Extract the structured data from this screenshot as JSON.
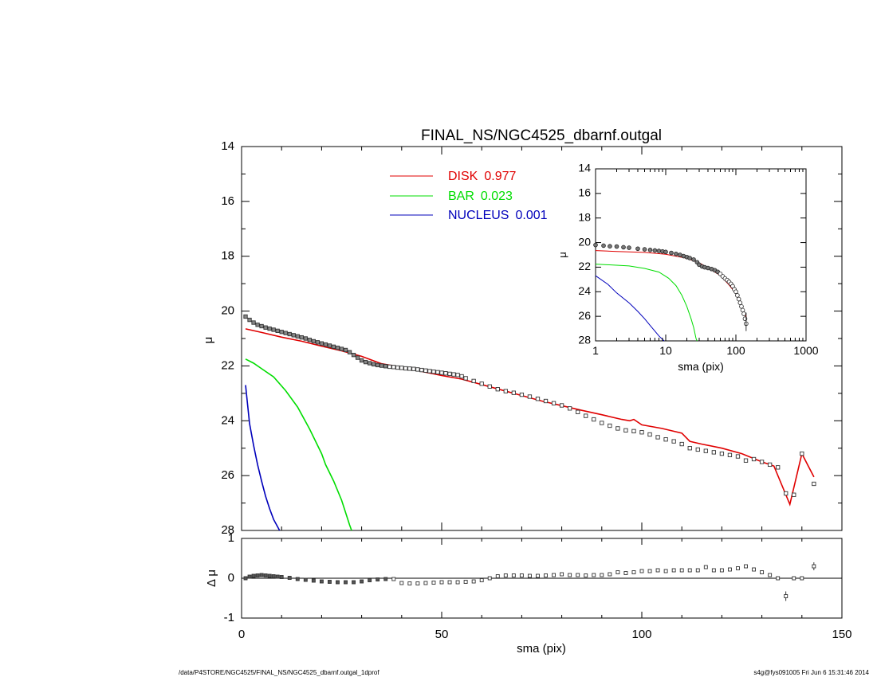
{
  "footer": {
    "left": "/data/P4STORE/NGC4525/FINAL_NS/NGC4525_dbarnf.outgal_1dprof",
    "right": "s4g@fys091005  Fri Jun  6 15:31:46 2014"
  },
  "colors": {
    "disk": "#e00000",
    "bar": "#00dd00",
    "nucleus": "#0000bb",
    "data": "#000000"
  },
  "chart_data": [
    {
      "type": "line",
      "title": "FINAL_NS/NGC4525_dbarnf.outgal",
      "xlabel": "",
      "ylabel": "μ",
      "xlim": [
        0,
        150
      ],
      "ylim": [
        28,
        14
      ],
      "x_ticks": [
        0,
        50,
        100,
        150
      ],
      "y_ticks": [
        14,
        16,
        18,
        20,
        22,
        24,
        26,
        28
      ],
      "legend_position": "top-left",
      "legend": [
        {
          "name": "DISK",
          "value": "0.977",
          "color": "#e00000"
        },
        {
          "name": "BAR",
          "value": "0.023",
          "color": "#00dd00"
        },
        {
          "name": "NUCLEUS",
          "value": "0.001",
          "color": "#0000bb"
        }
      ],
      "series": [
        {
          "name": "DISK",
          "color": "#e00000",
          "x": [
            1,
            5,
            10,
            15,
            20,
            25,
            30,
            35,
            40,
            45,
            50,
            55,
            60,
            65,
            70,
            75,
            80,
            85,
            90,
            95,
            97,
            98,
            100,
            105,
            110,
            112,
            115,
            120,
            125,
            130,
            133,
            137,
            140,
            143
          ],
          "y": [
            20.65,
            20.78,
            20.95,
            21.1,
            21.28,
            21.45,
            21.65,
            21.92,
            22.05,
            22.2,
            22.35,
            22.48,
            22.68,
            22.88,
            23.08,
            23.28,
            23.45,
            23.62,
            23.78,
            23.95,
            24.0,
            23.95,
            24.15,
            24.28,
            24.45,
            24.75,
            24.85,
            25.0,
            25.2,
            25.5,
            25.65,
            27.05,
            25.2,
            26.05
          ]
        },
        {
          "name": "BAR",
          "color": "#00dd00",
          "x": [
            1,
            3,
            5,
            8,
            11,
            14,
            17,
            20,
            21,
            23,
            25,
            27,
            27.5
          ],
          "y": [
            21.75,
            21.9,
            22.1,
            22.4,
            22.9,
            23.5,
            24.3,
            25.2,
            25.6,
            26.2,
            26.9,
            27.8,
            28.0
          ]
        },
        {
          "name": "NUCLEUS",
          "color": "#0000bb",
          "x": [
            1,
            2,
            3,
            4,
            5,
            6,
            7,
            8,
            9.5
          ],
          "y": [
            22.7,
            24.1,
            24.9,
            25.6,
            26.2,
            26.75,
            27.2,
            27.6,
            28.0
          ]
        },
        {
          "name": "",
          "color": "#000000",
          "x": [
            1,
            2,
            3,
            4,
            5,
            6,
            7,
            8,
            9,
            10,
            11,
            12,
            13,
            14,
            15,
            16,
            17,
            18,
            19,
            20,
            21,
            22,
            23,
            24,
            25,
            26,
            27,
            28,
            29,
            30,
            31,
            32,
            33,
            34,
            35,
            36,
            37,
            38,
            39,
            40,
            41,
            42,
            43,
            44,
            45,
            46,
            47,
            48,
            49,
            50,
            51,
            52,
            53,
            54,
            55,
            56,
            58,
            60,
            62,
            64,
            66,
            68,
            70,
            72,
            74,
            76,
            78,
            80,
            82,
            84,
            86,
            88,
            90,
            92,
            94,
            96,
            98,
            100,
            102,
            104,
            106,
            108,
            110,
            112,
            114,
            116,
            118,
            120,
            122,
            124,
            126,
            128,
            130,
            132,
            134,
            136,
            138,
            140,
            143
          ],
          "y": [
            20.2,
            20.32,
            20.42,
            20.5,
            20.55,
            20.6,
            20.64,
            20.68,
            20.72,
            20.76,
            20.8,
            20.84,
            20.88,
            20.92,
            20.96,
            21.0,
            21.05,
            21.1,
            21.14,
            21.18,
            21.22,
            21.26,
            21.3,
            21.34,
            21.38,
            21.42,
            21.5,
            21.6,
            21.7,
            21.8,
            21.86,
            21.9,
            21.94,
            21.97,
            21.99,
            22.01,
            22.03,
            22.04,
            22.06,
            22.07,
            22.09,
            22.1,
            22.11,
            22.13,
            22.15,
            22.17,
            22.19,
            22.21,
            22.23,
            22.25,
            22.27,
            22.29,
            22.31,
            22.33,
            22.38,
            22.45,
            22.55,
            22.65,
            22.75,
            22.85,
            22.92,
            22.98,
            23.05,
            23.12,
            23.2,
            23.28,
            23.36,
            23.44,
            23.55,
            23.68,
            23.82,
            23.95,
            24.08,
            24.18,
            24.28,
            24.35,
            24.38,
            24.42,
            24.5,
            24.6,
            24.68,
            24.75,
            24.85,
            25.0,
            25.05,
            25.1,
            25.15,
            25.2,
            25.25,
            25.3,
            25.45,
            25.4,
            25.5,
            25.6,
            25.7,
            26.65,
            26.7,
            25.2,
            26.3
          ]
        }
      ]
    },
    {
      "type": "scatter",
      "title": "",
      "xlabel": "sma (pix)",
      "ylabel": "Δ μ",
      "xlim": [
        0,
        150
      ],
      "ylim": [
        -1.0,
        1.0
      ],
      "x_ticks": [
        0,
        50,
        100,
        150
      ],
      "y_ticks": [
        -1,
        0,
        1
      ],
      "reference_line": 0,
      "series": [
        {
          "name": "",
          "x": [
            1,
            2,
            3,
            4,
            5,
            6,
            7,
            8,
            9,
            10,
            12,
            14,
            16,
            18,
            20,
            22,
            24,
            26,
            28,
            30,
            32,
            34,
            36,
            38,
            40,
            42,
            44,
            46,
            48,
            50,
            52,
            54,
            56,
            58,
            60,
            62,
            64,
            66,
            68,
            70,
            72,
            74,
            76,
            78,
            80,
            82,
            84,
            86,
            88,
            90,
            92,
            94,
            96,
            98,
            100,
            102,
            104,
            106,
            108,
            110,
            112,
            114,
            116,
            118,
            120,
            122,
            124,
            126,
            128,
            130,
            132,
            134,
            136,
            138,
            140,
            143
          ],
          "y": [
            0.0,
            0.04,
            0.06,
            0.07,
            0.08,
            0.07,
            0.06,
            0.05,
            0.04,
            0.03,
            0.01,
            -0.02,
            -0.04,
            -0.06,
            -0.08,
            -0.09,
            -0.1,
            -0.1,
            -0.1,
            -0.08,
            -0.05,
            -0.03,
            -0.02,
            -0.02,
            -0.12,
            -0.13,
            -0.13,
            -0.12,
            -0.11,
            -0.1,
            -0.1,
            -0.1,
            -0.09,
            -0.08,
            -0.05,
            0.0,
            0.05,
            0.07,
            0.07,
            0.07,
            0.06,
            0.06,
            0.07,
            0.08,
            0.1,
            0.08,
            0.08,
            0.07,
            0.08,
            0.08,
            0.1,
            0.15,
            0.13,
            0.15,
            0.18,
            0.18,
            0.2,
            0.18,
            0.2,
            0.2,
            0.2,
            0.2,
            0.28,
            0.2,
            0.2,
            0.22,
            0.25,
            0.3,
            0.22,
            0.15,
            0.08,
            0.0,
            -0.45,
            0.0,
            0.0,
            0.3
          ],
          "err": [
            0,
            0,
            0,
            0,
            0,
            0,
            0,
            0,
            0,
            0,
            0,
            0,
            0,
            0,
            0,
            0,
            0,
            0,
            0,
            0,
            0,
            0,
            0,
            0,
            0,
            0,
            0,
            0,
            0,
            0,
            0,
            0,
            0,
            0,
            0,
            0,
            0,
            0,
            0,
            0,
            0,
            0,
            0,
            0,
            0,
            0,
            0,
            0,
            0,
            0,
            0,
            0,
            0,
            0,
            0,
            0,
            0,
            0,
            0,
            0,
            0,
            0,
            0,
            0,
            0,
            0,
            0,
            0,
            0,
            0,
            0.04,
            0.05,
            0.12,
            0.05,
            0.05,
            0.1
          ]
        }
      ]
    },
    {
      "type": "line",
      "title": "",
      "xlabel": "sma (pix)",
      "ylabel": "μ",
      "x_scale": "log",
      "xlim": [
        1,
        1000
      ],
      "ylim": [
        28,
        14
      ],
      "x_ticks": [
        1,
        10,
        100,
        1000
      ],
      "y_ticks": [
        14,
        16,
        18,
        20,
        22,
        24,
        26,
        28
      ],
      "series": [
        {
          "name": "DISK",
          "color": "#e00000",
          "x": [
            1,
            2,
            5,
            10,
            20,
            30,
            40,
            60,
            80,
            100,
            140
          ],
          "y": [
            20.65,
            20.72,
            20.8,
            20.95,
            21.28,
            21.65,
            22.05,
            22.68,
            23.45,
            24.15,
            26.05
          ]
        },
        {
          "name": "BAR",
          "color": "#00dd00",
          "x": [
            1,
            3,
            5,
            8,
            11,
            14,
            17,
            20,
            23,
            25,
            27,
            28
          ],
          "y": [
            21.75,
            21.9,
            22.1,
            22.4,
            22.9,
            23.5,
            24.3,
            25.2,
            26.2,
            26.9,
            27.8,
            28.0
          ]
        },
        {
          "name": "NUCLEUS",
          "color": "#0000bb",
          "x": [
            1,
            1.5,
            2,
            3,
            4,
            5,
            6,
            7,
            8,
            9.5
          ],
          "y": [
            22.7,
            23.4,
            24.1,
            24.9,
            25.6,
            26.2,
            26.75,
            27.2,
            27.6,
            28.0
          ]
        },
        {
          "name": "",
          "color": "#000000",
          "x": [
            1,
            1.3,
            1.6,
            2,
            2.5,
            3,
            4,
            5,
            6,
            7,
            8,
            9,
            10,
            12,
            14,
            16,
            18,
            20,
            22,
            25,
            28,
            30,
            33,
            36,
            40,
            45,
            50,
            55,
            60,
            65,
            70,
            75,
            80,
            85,
            90,
            95,
            100,
            105,
            110,
            115,
            120,
            125,
            130,
            135,
            140
          ],
          "y": [
            20.2,
            20.25,
            20.3,
            20.32,
            20.38,
            20.42,
            20.5,
            20.55,
            20.6,
            20.64,
            20.68,
            20.72,
            20.76,
            20.84,
            20.92,
            21.0,
            21.1,
            21.18,
            21.26,
            21.38,
            21.6,
            21.8,
            21.94,
            22.01,
            22.07,
            22.15,
            22.25,
            22.38,
            22.55,
            22.75,
            22.92,
            23.05,
            23.2,
            23.36,
            23.55,
            23.8,
            24.0,
            24.3,
            24.6,
            24.9,
            25.2,
            25.5,
            25.8,
            26.2,
            26.6
          ]
        }
      ]
    }
  ]
}
